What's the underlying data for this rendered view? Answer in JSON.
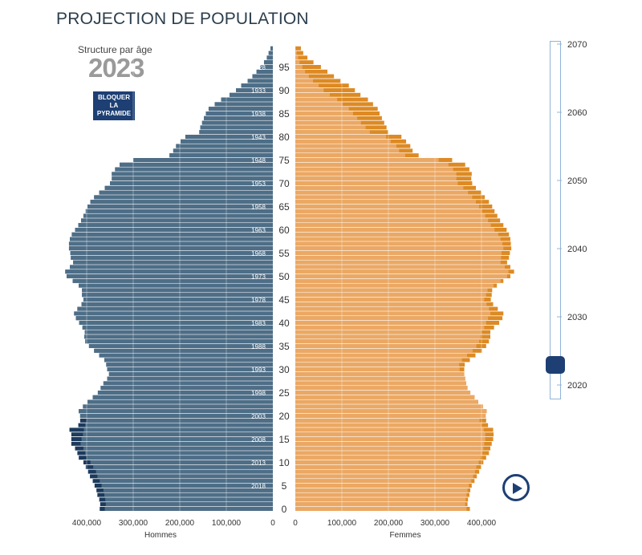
{
  "title": "PROJECTION DE POPULATION",
  "subtitle": "Structure par âge",
  "current_year": "2023",
  "lock_button_label": "BLOQUER\nLA\nPYRAMIDE",
  "year_slider": {
    "min": 2018,
    "max": 2070,
    "value": 2023,
    "tick_labels": [
      "2070",
      "2060",
      "2050",
      "2040",
      "2030",
      "2020"
    ]
  },
  "icons": {
    "play": "play-icon"
  },
  "colors": {
    "men": "#4e6e87",
    "men_dark": "#1c3a5c",
    "women": "#eba864",
    "women_dark": "#dd8a24",
    "accent": "#1d3f73"
  },
  "chart_data": {
    "type": "bar",
    "orientation": "horizontal-pyramid",
    "xlabel_left": "Hommes",
    "xlabel_right": "Femmes",
    "x_ticks_left": [
      "400,000",
      "300,000",
      "200,000",
      "100,000",
      "0"
    ],
    "x_ticks_right": [
      "0",
      "100,000",
      "200,000",
      "300,000",
      "400,000"
    ],
    "xlim": [
      0,
      450000
    ],
    "age_ticks": [
      "0",
      "5",
      "10",
      "15",
      "20",
      "25",
      "30",
      "35",
      "40",
      "45",
      "50",
      "55",
      "60",
      "65",
      "70",
      "75",
      "80",
      "85",
      "90",
      "95"
    ],
    "birth_year_labels": [
      "2018",
      "2013",
      "2008",
      "2003",
      "1998",
      "1993",
      "1988",
      "1983",
      "1978",
      "1973",
      "1968",
      "1963",
      "1958",
      "1953",
      "1948",
      "1943",
      "1938",
      "1933",
      "1928"
    ],
    "ages": [
      0,
      1,
      2,
      3,
      4,
      5,
      6,
      7,
      8,
      9,
      10,
      11,
      12,
      13,
      14,
      15,
      16,
      17,
      18,
      19,
      20,
      21,
      22,
      23,
      24,
      25,
      26,
      27,
      28,
      29,
      30,
      31,
      32,
      33,
      34,
      35,
      36,
      37,
      38,
      39,
      40,
      41,
      42,
      43,
      44,
      45,
      46,
      47,
      48,
      49,
      50,
      51,
      52,
      53,
      54,
      55,
      56,
      57,
      58,
      59,
      60,
      61,
      62,
      63,
      64,
      65,
      66,
      67,
      68,
      69,
      70,
      71,
      72,
      73,
      74,
      75,
      76,
      77,
      78,
      79,
      80,
      81,
      82,
      83,
      84,
      85,
      86,
      87,
      88,
      89,
      90,
      91,
      92,
      93,
      94,
      95,
      96,
      97,
      98,
      99
    ],
    "series": [
      {
        "name": "Hommes",
        "values": [
          372000,
          371000,
          373000,
          377000,
          379000,
          383000,
          387000,
          393000,
          397000,
          402000,
          407000,
          417000,
          420000,
          425000,
          433000,
          433000,
          433000,
          437000,
          418000,
          414000,
          414000,
          417000,
          408000,
          398000,
          387000,
          376000,
          370000,
          364000,
          356000,
          352000,
          356000,
          358000,
          362000,
          373000,
          384000,
          395000,
          403000,
          405000,
          404000,
          409000,
          416000,
          423000,
          427000,
          420000,
          411000,
          407000,
          410000,
          410000,
          417000,
          430000,
          443000,
          446000,
          436000,
          429000,
          434000,
          435000,
          438000,
          438000,
          436000,
          432000,
          425000,
          418000,
          412000,
          407000,
          402000,
          398000,
          392000,
          384000,
          373000,
          361000,
          350000,
          346000,
          346000,
          339000,
          329000,
          300000,
          222000,
          214000,
          208000,
          198000,
          188000,
          158000,
          156000,
          152000,
          148000,
          144000,
          138000,
          125000,
          111000,
          93000,
          79000,
          68000,
          54000,
          44000,
          35000,
          27000,
          19000,
          13000,
          9000,
          5000
        ],
        "projection_values": [
          361000,
          359000,
          360000,
          362000,
          364000,
          368000,
          372000,
          377000,
          380000,
          386000,
          392000,
          400000,
          403000,
          407000,
          413000,
          411000,
          408000,
          406000,
          403000,
          400000,
          414000,
          417000,
          408000,
          398000,
          387000,
          376000,
          370000,
          364000,
          356000,
          352000,
          356000,
          358000,
          362000,
          373000,
          384000,
          395000,
          403000,
          405000,
          404000,
          409000,
          416000,
          423000,
          427000,
          420000,
          411000,
          407000,
          410000,
          410000,
          417000,
          430000,
          443000,
          446000,
          436000,
          429000,
          434000,
          435000,
          438000,
          438000,
          436000,
          432000,
          425000,
          418000,
          412000,
          407000,
          402000,
          398000,
          392000,
          384000,
          373000,
          361000,
          350000,
          346000,
          346000,
          339000,
          329000,
          300000,
          222000,
          214000,
          208000,
          198000,
          188000,
          158000,
          156000,
          152000,
          148000,
          144000,
          138000,
          125000,
          111000,
          93000,
          79000,
          68000,
          54000,
          44000,
          35000,
          27000,
          19000,
          13000,
          9000,
          5000
        ]
      },
      {
        "name": "Femmes",
        "values": [
          375000,
          370000,
          371000,
          374000,
          376000,
          379000,
          385000,
          390000,
          395000,
          399000,
          404000,
          410000,
          416000,
          419000,
          422000,
          425000,
          426000,
          425000,
          414000,
          410000,
          409000,
          411000,
          403000,
          393000,
          385000,
          376000,
          370000,
          367000,
          365000,
          363000,
          363000,
          364000,
          375000,
          387000,
          401000,
          410000,
          416000,
          419000,
          419000,
          427000,
          438000,
          445000,
          447000,
          435000,
          425000,
          420000,
          422000,
          423000,
          433000,
          447000,
          462000,
          470000,
          462000,
          455000,
          459000,
          461000,
          464000,
          463000,
          462000,
          459000,
          454000,
          447000,
          440000,
          434000,
          428000,
          423000,
          416000,
          407000,
          399000,
          388000,
          380000,
          378000,
          379000,
          374000,
          365000,
          337000,
          265000,
          252000,
          247000,
          238000,
          228000,
          199000,
          196000,
          191000,
          186000,
          181000,
          177000,
          167000,
          156000,
          140000,
          128000,
          115000,
          97000,
          83000,
          69000,
          55000,
          39000,
          26000,
          17000,
          12000
        ],
        "projection_values": [
          368000,
          365000,
          366000,
          368000,
          370000,
          373000,
          378000,
          382000,
          386000,
          389000,
          394000,
          398000,
          402000,
          404000,
          406000,
          408000,
          408000,
          405000,
          400000,
          396000,
          409000,
          411000,
          403000,
          393000,
          385000,
          376000,
          370000,
          367000,
          365000,
          363000,
          353000,
          352000,
          358000,
          369000,
          381000,
          389000,
          395000,
          398000,
          400000,
          406000,
          410000,
          414000,
          419000,
          416000,
          411000,
          406000,
          410000,
          413000,
          426000,
          441000,
          455000,
          458000,
          450000,
          441000,
          442000,
          443000,
          447000,
          445000,
          441000,
          436000,
          428000,
          420000,
          414000,
          408000,
          401000,
          395000,
          388000,
          380000,
          371000,
          361000,
          349000,
          346000,
          346000,
          339000,
          329000,
          308000,
          236000,
          223000,
          217000,
          205000,
          195000,
          160000,
          151000,
          141000,
          133000,
          124000,
          115000,
          102000,
          90000,
          74000,
          61000,
          50000,
          38000,
          29000,
          21000,
          15000,
          9000,
          6000,
          3000,
          1000
        ]
      }
    ]
  }
}
